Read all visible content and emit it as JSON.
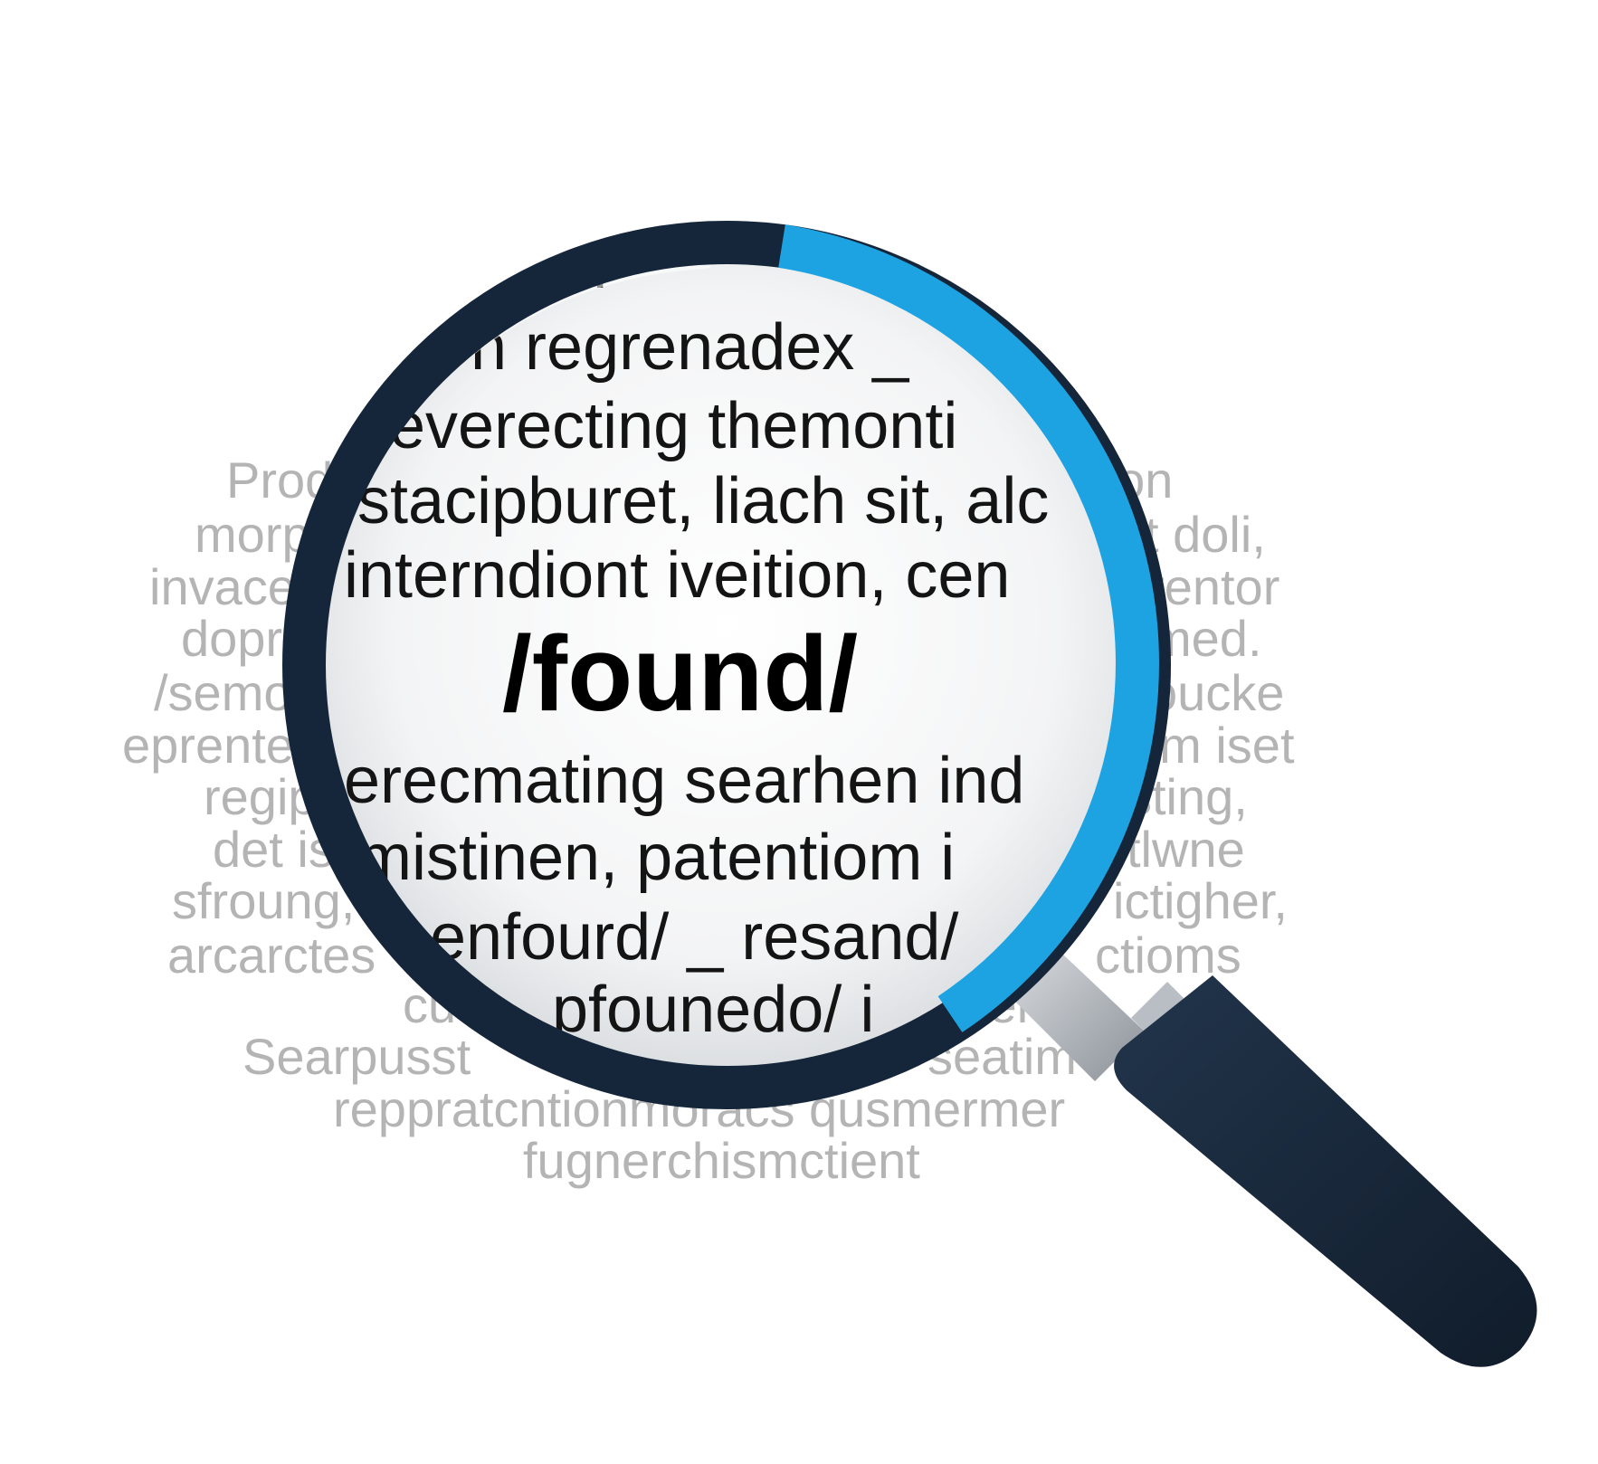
{
  "background_text": [
    "Prod",
    "ation",
    "morp",
    "t doli,",
    "invace",
    "etentor",
    "dopr",
    "med.",
    "/semo",
    "oucke",
    "eprente",
    "um iset",
    "regip",
    "sting,",
    "det is",
    "tlwne",
    "sfroung,",
    "ictigher,",
    "arcarctes",
    "ctioms",
    "cu",
    "len",
    "Searpusst",
    "seatim",
    "reppratcntionmoracs qusmermer",
    "fugnerchismctient"
  ],
  "lens_text": [
    "uudni",
    "n regrenadex _",
    "everecting themonti",
    "stacipburet, liach sit, alc",
    "interndiont iveition,  cen",
    "erecmating  searhen ind",
    "mistinen, patentiom i",
    "enfourd/ _ resand/",
    "pfounedo/ i"
  ],
  "focus_word": "/found/",
  "icon": "magnifying-glass-icon",
  "colors": {
    "frame_dark": "#16263a",
    "frame_accent": "#1ea3e2",
    "handle": "#16263a",
    "shaft": "#c9cdd2",
    "background_text": "#b4b4b4",
    "lens_text": "#141414",
    "background": "#ffffff"
  }
}
